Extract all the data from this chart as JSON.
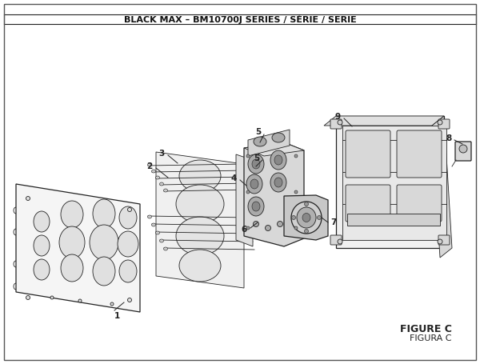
{
  "title": "BLACK MAX – BM10700J SERIES / SÉRIE / SERIE",
  "figure_label": "FIGURE C",
  "figura_label": "FIGURA C",
  "bg_color": "#ffffff",
  "border_color": "#333333",
  "line_color": "#222222",
  "gray_fill": "#e8e8e8",
  "dark_gray": "#888888",
  "mid_gray": "#bbbbbb"
}
